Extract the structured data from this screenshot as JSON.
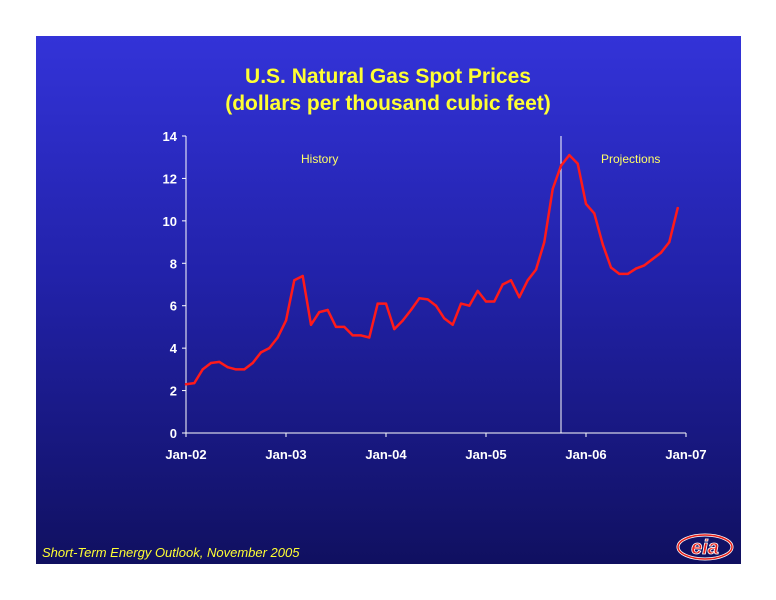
{
  "chart_data": {
    "type": "line",
    "title": [
      "U.S. Natural Gas Spot Prices",
      "(dollars per thousand cubic feet)"
    ],
    "xlabel": "",
    "ylabel": "",
    "ylim": [
      0,
      14
    ],
    "yticks": [
      "0",
      "2",
      "4",
      "6",
      "8",
      "10",
      "12",
      "14"
    ],
    "xlim": [
      "2002-01",
      "2007-01"
    ],
    "xticks": [
      {
        "date": "2002-01",
        "label": "Jan-02"
      },
      {
        "date": "2003-01",
        "label": "Jan-03"
      },
      {
        "date": "2004-01",
        "label": "Jan-04"
      },
      {
        "date": "2005-01",
        "label": "Jan-05"
      },
      {
        "date": "2006-01",
        "label": "Jan-06"
      },
      {
        "date": "2007-01",
        "label": "Jan-07"
      }
    ],
    "divider_date": "2005-10",
    "region_labels": {
      "history": "History",
      "projections": "Projections"
    },
    "line_color": "#ff1a1a",
    "grid": false,
    "legend": "none",
    "series": [
      {
        "x": [
          "2002-01",
          "2002-02",
          "2002-03",
          "2002-04",
          "2002-05",
          "2002-06",
          "2002-07",
          "2002-08",
          "2002-09",
          "2002-10",
          "2002-11",
          "2002-12",
          "2003-01",
          "2003-02",
          "2003-03",
          "2003-04",
          "2003-05",
          "2003-06",
          "2003-07",
          "2003-08",
          "2003-09",
          "2003-10",
          "2003-11",
          "2003-12",
          "2004-01",
          "2004-02",
          "2004-03",
          "2004-04",
          "2004-05",
          "2004-06",
          "2004-07",
          "2004-08",
          "2004-09",
          "2004-10",
          "2004-11",
          "2004-12",
          "2005-01",
          "2005-02",
          "2005-03",
          "2005-04",
          "2005-05",
          "2005-06",
          "2005-07",
          "2005-08",
          "2005-09",
          "2005-10",
          "2005-11",
          "2005-12",
          "2006-01",
          "2006-02",
          "2006-03",
          "2006-04",
          "2006-05",
          "2006-06",
          "2006-07",
          "2006-08",
          "2006-09",
          "2006-10",
          "2006-11",
          "2006-12"
        ],
        "values": [
          2.3,
          2.35,
          3.0,
          3.3,
          3.35,
          3.1,
          3.0,
          3.0,
          3.3,
          3.8,
          4.0,
          4.5,
          5.3,
          7.2,
          7.4,
          5.1,
          5.7,
          5.8,
          5.0,
          5.0,
          4.6,
          4.6,
          4.5,
          6.1,
          6.1,
          4.9,
          5.3,
          5.8,
          6.35,
          6.3,
          6.0,
          5.4,
          5.1,
          6.1,
          6.0,
          6.7,
          6.2,
          6.2,
          7.0,
          7.2,
          6.4,
          7.2,
          7.7,
          9.0,
          11.5,
          12.6,
          13.1,
          12.7,
          10.8,
          10.35,
          8.9,
          7.8,
          7.5,
          7.5,
          7.75,
          7.9,
          8.2,
          8.5,
          9.0,
          10.6
        ]
      }
    ]
  },
  "footnote": "Short-Term Energy Outlook, November 2005",
  "logo_text": "eia",
  "colors": {
    "accent_yellow": "#ffff33",
    "axis": "#ffffff"
  }
}
